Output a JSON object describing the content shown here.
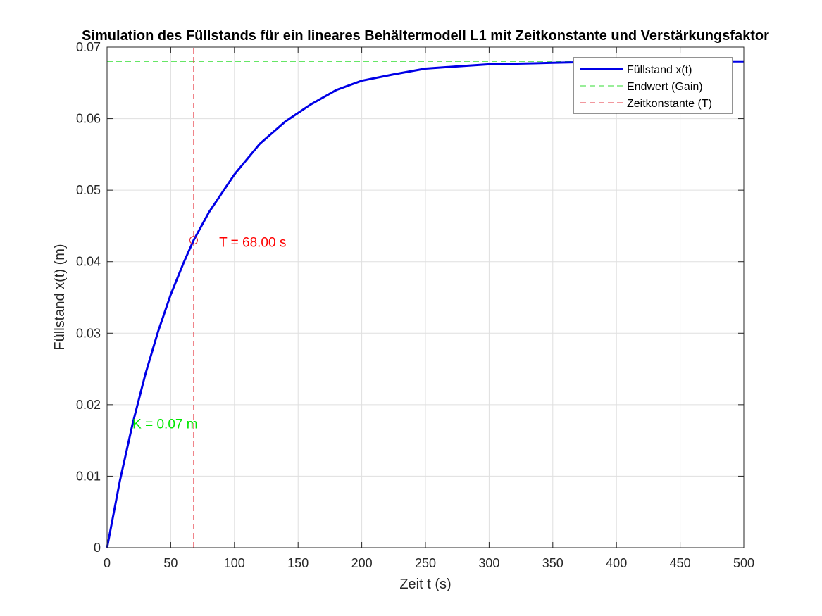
{
  "chart_data": {
    "type": "line",
    "title": "Simulation des Füllstands für ein lineares Behältermodell L1 mit Zeitkonstante und Verstärkungsfaktor",
    "xlabel": "Zeit t (s)",
    "ylabel": "Füllstand x(t) (m)",
    "xlim": [
      0,
      500
    ],
    "ylim": [
      0,
      0.07
    ],
    "xticks": [
      0,
      50,
      100,
      150,
      200,
      250,
      300,
      350,
      400,
      450,
      500
    ],
    "xtick_labels": [
      "0",
      "50",
      "100",
      "150",
      "200",
      "250",
      "300",
      "350",
      "400",
      "450",
      "500"
    ],
    "yticks": [
      0,
      0.01,
      0.02,
      0.03,
      0.04,
      0.05,
      0.06,
      0.07
    ],
    "ytick_labels": [
      "0",
      "0.01",
      "0.02",
      "0.03",
      "0.04",
      "0.05",
      "0.06",
      "0.07"
    ],
    "grid": true,
    "legend_position": "top-right",
    "gain": 0.068,
    "time_constant": 68,
    "series": [
      {
        "name": "Füllstand x(t)",
        "style": "solid",
        "color": "#0000e6",
        "x": [
          0,
          10,
          20,
          30,
          40,
          50,
          60,
          68,
          80,
          100,
          120,
          140,
          160,
          180,
          200,
          225,
          250,
          275,
          300,
          325,
          350,
          375,
          400,
          425,
          450,
          475,
          500
        ],
        "y": [
          0,
          0.0093,
          0.0173,
          0.0242,
          0.0302,
          0.0354,
          0.0398,
          0.043,
          0.0469,
          0.0522,
          0.0565,
          0.0596,
          0.062,
          0.064,
          0.0653,
          0.0662,
          0.067,
          0.0673,
          0.0676,
          0.0677,
          0.0678,
          0.0679,
          0.0679,
          0.068,
          0.068,
          0.068,
          0.068
        ]
      },
      {
        "name": "Endwert (Gain)",
        "style": "dashed",
        "color": "#33dd33",
        "x": [
          0,
          500
        ],
        "y": [
          0.068,
          0.068
        ]
      },
      {
        "name": "Zeitkonstante (T)",
        "style": "dashed",
        "color": "#e6323c",
        "x": [
          68,
          68
        ],
        "y": [
          0,
          0.07
        ]
      }
    ],
    "marker": {
      "x": 68,
      "y": 0.043,
      "shape": "circle",
      "color": "#e6323c"
    },
    "annotations": [
      {
        "text": "T = 68.00 s",
        "x": 88,
        "y": 0.0428,
        "color": "#ff0000"
      },
      {
        "text": "K = 0.07 m",
        "x": 20,
        "y": 0.0174,
        "color": "#00e600"
      }
    ]
  }
}
